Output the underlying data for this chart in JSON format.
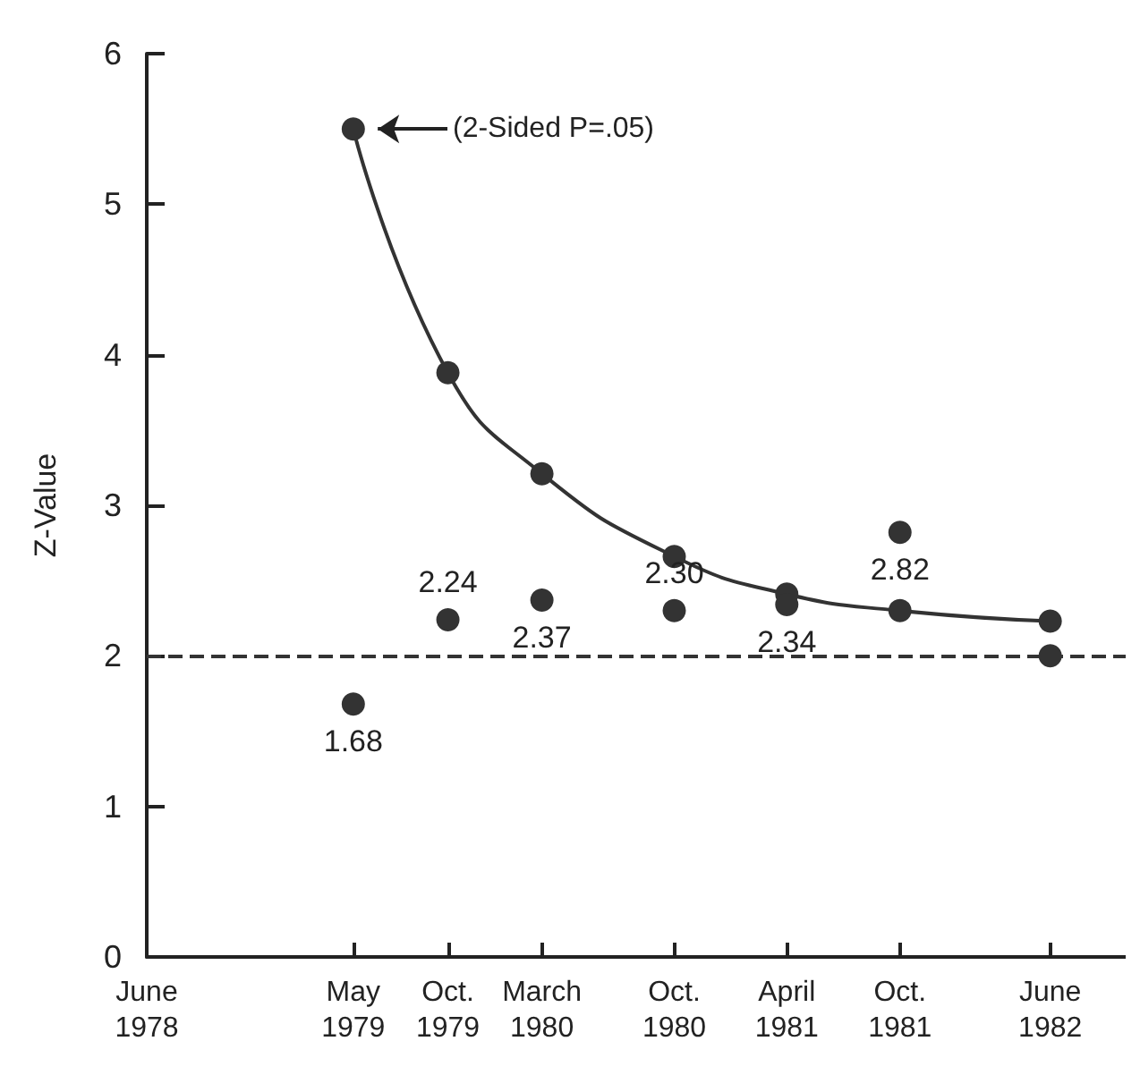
{
  "chart_data": {
    "type": "line",
    "ylabel": "Z-Value",
    "xlim": [
      "1978-06",
      "1982-10"
    ],
    "xticks": [
      {
        "value": "1978-06",
        "label": "June\n1978"
      },
      {
        "value": "1979-05",
        "label": "May\n1979"
      },
      {
        "value": "1979-10",
        "label": "Oct.\n1979"
      },
      {
        "value": "1980-03",
        "label": "March\n1980"
      },
      {
        "value": "1980-10",
        "label": "Oct.\n1980"
      },
      {
        "value": "1981-04",
        "label": "April\n1981"
      },
      {
        "value": "1981-10",
        "label": "Oct.\n1981"
      },
      {
        "value": "1982-06",
        "label": "June\n1982"
      }
    ],
    "ylim": [
      0,
      6
    ],
    "yticks": [
      0,
      1,
      2,
      3,
      4,
      5,
      6
    ],
    "series": [
      {
        "type": "line",
        "color": "#333333",
        "marker": "circle",
        "line_style": "solid",
        "x": [
          "1979-05",
          "1979-10",
          "1980-03",
          "1980-10",
          "1981-04",
          "1981-10",
          "1982-06"
        ],
        "values": [
          5.5,
          3.88,
          3.21,
          2.66,
          2.41,
          2.3,
          2.23
        ]
      },
      {
        "type": "scatter",
        "color": "#333333",
        "marker": "circle",
        "x": [
          "1979-05",
          "1979-10",
          "1980-03",
          "1980-10",
          "1981-04",
          "1981-10",
          "1982-06"
        ],
        "values": [
          1.68,
          2.24,
          2.37,
          2.3,
          2.34,
          2.82,
          2.0
        ],
        "value_labels": [
          "1.68",
          "2.24",
          "2.37",
          "2.30",
          "2.34",
          "2.82",
          null
        ]
      }
    ],
    "ref_lines": [
      {
        "axis": "y",
        "value": 2,
        "line_style": "dashed",
        "color": "#333333"
      }
    ],
    "annotations": [
      "(2-Sided P=.05)"
    ],
    "grid": false
  }
}
